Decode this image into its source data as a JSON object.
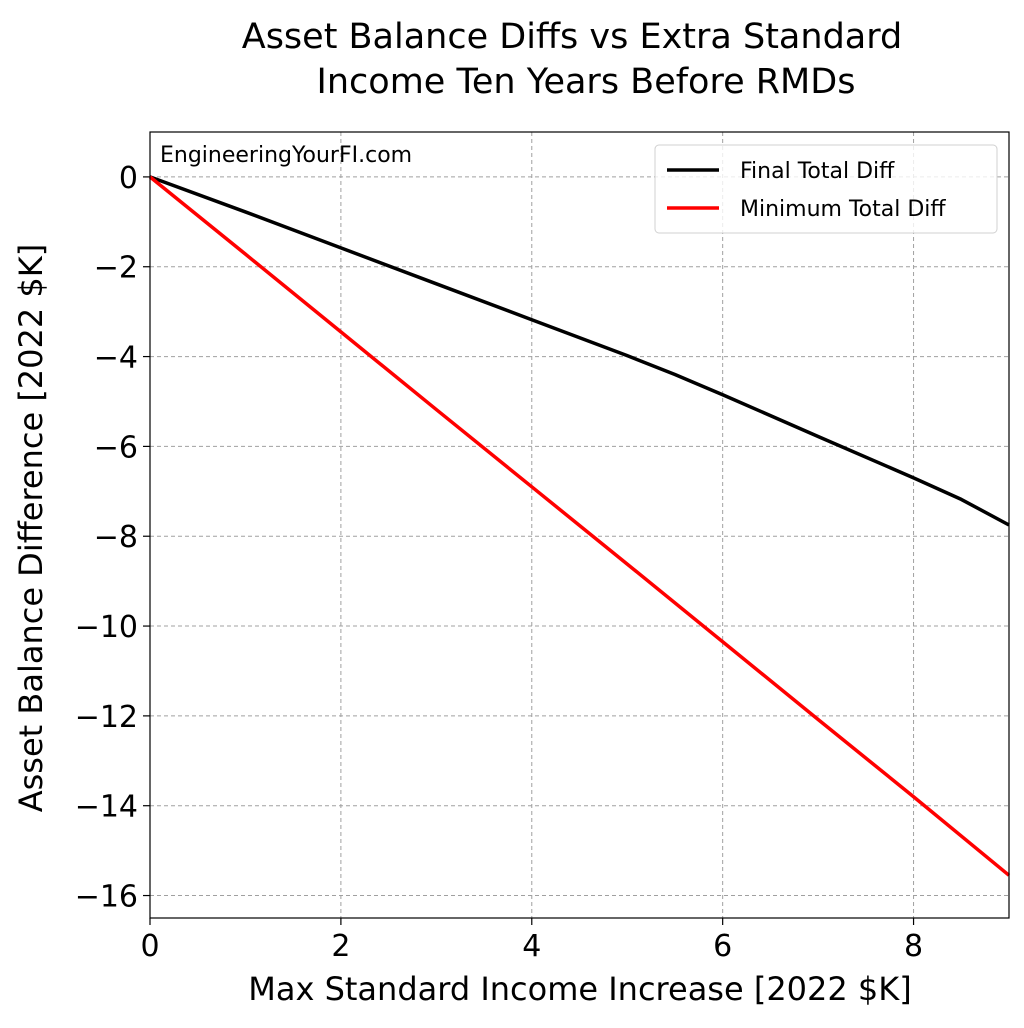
{
  "chart_data": {
    "type": "line",
    "title_lines": [
      "Asset Balance Diffs vs Extra Standard",
      "Income Ten Years Before RMDs"
    ],
    "xlabel": "Max Standard Income Increase [2022 $K]",
    "ylabel": "Asset Balance Difference [2022 $K]",
    "annotation": "EngineeringYourFI.com",
    "xlim": [
      0,
      9
    ],
    "ylim": [
      -16.5,
      1.0
    ],
    "x_ticks": [
      0,
      2,
      4,
      6,
      8
    ],
    "x_tick_labels": [
      "0",
      "2",
      "4",
      "6",
      "8"
    ],
    "y_ticks": [
      0,
      -2,
      -4,
      -6,
      -8,
      -10,
      -12,
      -14,
      -16
    ],
    "y_tick_labels": [
      "0",
      "−2",
      "−4",
      "−6",
      "−8",
      "−10",
      "−12",
      "−14",
      "−16"
    ],
    "grid": true,
    "legend_position": "top-right",
    "series": [
      {
        "name": "Final Total Diff",
        "color": "#000000",
        "x": [
          0,
          1,
          2,
          3,
          4,
          5,
          5.5,
          6,
          7,
          8,
          8.5,
          9
        ],
        "y": [
          0,
          -0.78,
          -1.58,
          -2.38,
          -3.18,
          -3.98,
          -4.4,
          -4.85,
          -5.78,
          -6.7,
          -7.18,
          -7.75
        ]
      },
      {
        "name": "Minimum Total Diff",
        "color": "#ff0000",
        "x": [
          0,
          1,
          2,
          3,
          4,
          5,
          6,
          7,
          8,
          9
        ],
        "y": [
          0,
          -1.72,
          -3.45,
          -5.18,
          -6.9,
          -8.62,
          -10.35,
          -12.08,
          -13.8,
          -15.55
        ]
      }
    ]
  }
}
